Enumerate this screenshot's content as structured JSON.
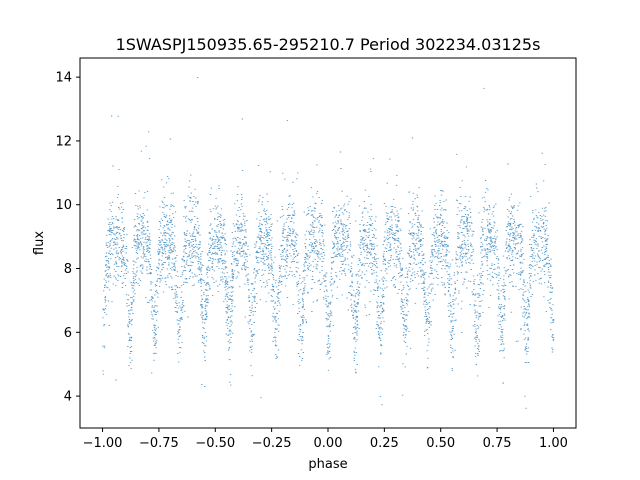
{
  "chart_data": {
    "type": "scatter",
    "title": "1SWASPJ150935.65-295210.7 Period 302234.03125s",
    "xlabel": "phase",
    "ylabel": "flux",
    "xlim": [
      -1.1,
      1.1
    ],
    "ylim": [
      3.0,
      14.6
    ],
    "x_ticks": [
      -1.0,
      -0.75,
      -0.5,
      -0.25,
      0.0,
      0.25,
      0.5,
      0.75,
      1.0
    ],
    "x_tick_labels": [
      "−1.00",
      "−0.75",
      "−0.50",
      "−0.25",
      "0.00",
      "0.25",
      "0.50",
      "0.75",
      "1.00"
    ],
    "y_ticks": [
      4,
      6,
      8,
      10,
      12,
      14
    ],
    "y_tick_labels": [
      "4",
      "6",
      "8",
      "10",
      "12",
      "14"
    ],
    "grid": false,
    "marker_color": "#1f77b4",
    "series": [
      {
        "phase_range": [
          -1.0,
          1.0
        ],
        "baseline_flux": 8.9,
        "scatter_sigma": 0.7,
        "dip_flux_min": 6.1,
        "dip_phases": [
          -0.88,
          -0.77,
          -0.66,
          -0.55,
          -0.44,
          -0.34,
          -0.23,
          -0.12,
          0.0,
          0.12,
          0.23,
          0.34,
          0.44,
          0.55,
          0.66,
          0.77,
          0.88,
          1.0,
          -1.0
        ],
        "outlier_flux_range": [
          3.6,
          14.0
        ]
      }
    ]
  }
}
